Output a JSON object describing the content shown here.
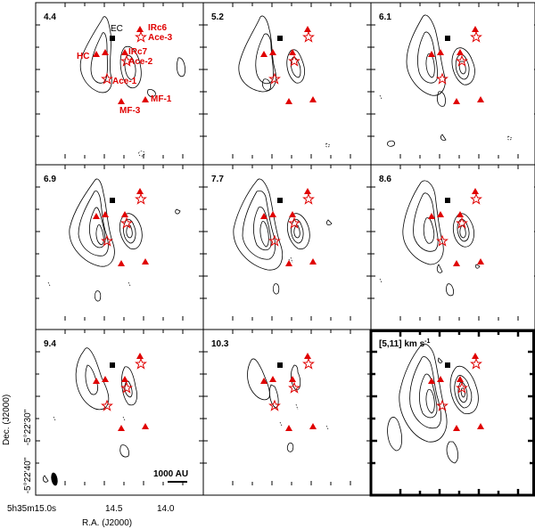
{
  "panels": [
    {
      "label": "4.4"
    },
    {
      "label": "5.2"
    },
    {
      "label": "6.1"
    },
    {
      "label": "6.9"
    },
    {
      "label": "7.7"
    },
    {
      "label": "8.6"
    },
    {
      "label": "9.4"
    },
    {
      "label": "10.3"
    },
    {
      "label": "[5,11] km s",
      "superscript": "-1"
    }
  ],
  "sources": {
    "ec": "EC",
    "irc6": "IRc6",
    "ace3": "Ace-3",
    "irc7": "IRc7",
    "ace2": "Ace-2",
    "hc": "HC",
    "ace1": "Ace-1",
    "mf1": "MF-1",
    "mf3": "MF-3"
  },
  "axes": {
    "ylabel": "Dec. (J2000)",
    "xlabel": "R.A. (J2000)",
    "yticks": [
      "-5°22'30\"",
      "-5°22'40\""
    ],
    "xticks": [
      "5h35m15.0s",
      "14.5",
      "14.0"
    ]
  },
  "scalebar": "1000 AU",
  "colors": {
    "markers": "#e00000",
    "contours": "#000000"
  }
}
